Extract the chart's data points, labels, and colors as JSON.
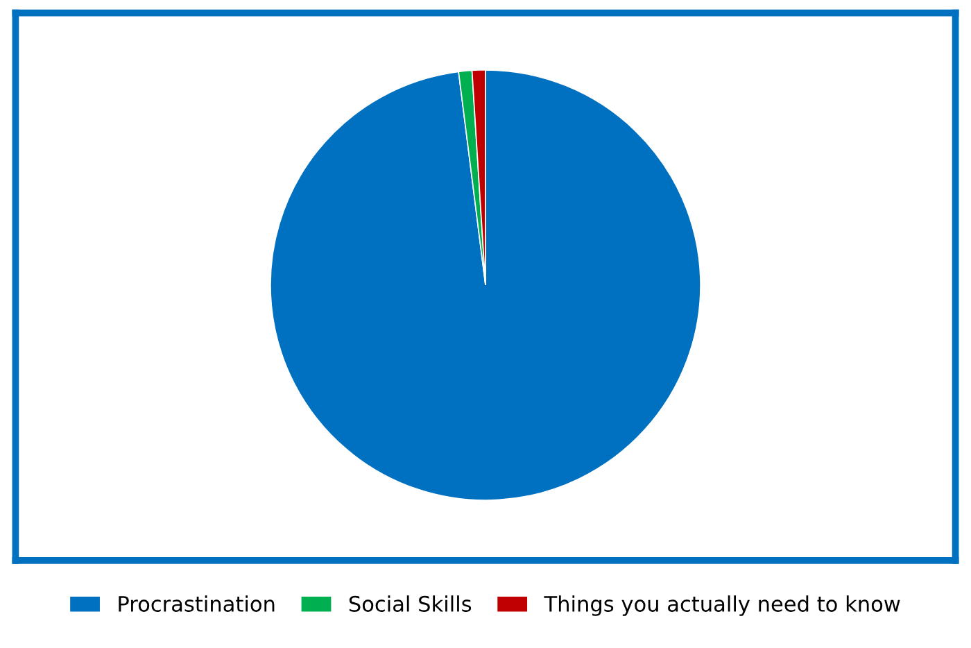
{
  "chart_data": {
    "type": "pie",
    "categories": [
      "Procrastination",
      "Social Skills",
      "Things you actually need to know"
    ],
    "values": [
      98,
      1,
      1
    ],
    "colors": [
      "#0070c0",
      "#00b050",
      "#c00000"
    ],
    "legend": "bottom"
  }
}
